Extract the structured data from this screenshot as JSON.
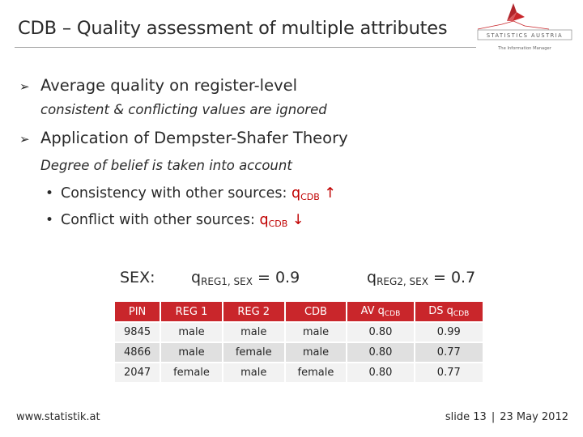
{
  "header": {
    "title": "CDB – Quality assessment of multiple attributes",
    "logo_text": "STATISTICS AUSTRIA",
    "logo_tagline": "The Information Manager",
    "accent_color": "#c9262b"
  },
  "content": {
    "bullet1": "Average quality on register-level",
    "bullet1_note": "consistent & conflicting values are ignored",
    "bullet2": "Application of Dempster-Shafer Theory",
    "bullet2_note": "Degree of belief is taken into account",
    "sub1_text": "Consistency with other sources: ",
    "sub1_q": "q",
    "sub1_q_sub": "CDB",
    "sub1_arrow": "↑",
    "sub2_text": "Conflict with other sources: ",
    "sub2_q": "q",
    "sub2_q_sub": "CDB",
    "sub2_arrow": "↓",
    "sex_label": "SEX:",
    "q1_main": "q",
    "q1_sub": "REG1, SEX",
    "q1_value": " = 0.9",
    "q2_main": "q",
    "q2_sub": "REG2, SEX",
    "q2_value": " = 0.7"
  },
  "table": {
    "headers": [
      {
        "main": "PIN",
        "sub": ""
      },
      {
        "main": "REG 1",
        "sub": ""
      },
      {
        "main": "REG 2",
        "sub": ""
      },
      {
        "main": "CDB",
        "sub": ""
      },
      {
        "main": "AV q",
        "sub": "CDB"
      },
      {
        "main": "DS q",
        "sub": "CDB"
      }
    ],
    "rows": [
      [
        "9845",
        "male",
        "male",
        "male",
        "0.80",
        "0.99"
      ],
      [
        "4866",
        "male",
        "female",
        "male",
        "0.80",
        "0.77"
      ],
      [
        "2047",
        "female",
        "male",
        "female",
        "0.80",
        "0.77"
      ]
    ]
  },
  "footer": {
    "website": "www.statistik.at",
    "slide": "slide 13",
    "separator": "|",
    "date": "23 May 2012"
  }
}
